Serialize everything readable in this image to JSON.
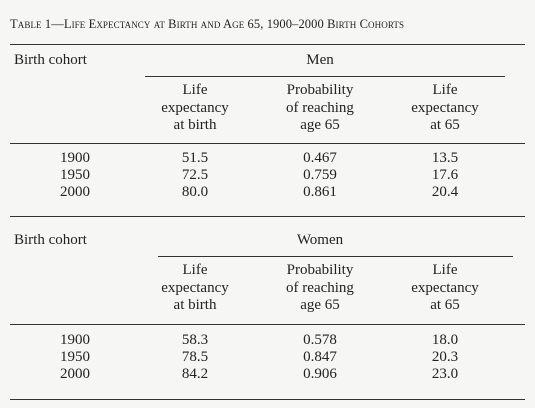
{
  "table": {
    "title_prefix": "Table 1",
    "title_dash": "—",
    "title_text": "Life Expectancy at Birth and Age 65, 1900–2000 Birth Cohorts",
    "birth_cohort_label": "Birth cohort",
    "columns": {
      "life_expectancy_birth": [
        "Life",
        "expectancy",
        "at birth"
      ],
      "prob_reaching_65": [
        "Probability",
        "of reaching",
        "age 65"
      ],
      "life_expectancy_65": [
        "Life",
        "expectancy",
        "at 65"
      ]
    },
    "sections": [
      {
        "group": "Men",
        "rows": [
          {
            "cohort": "1900",
            "le_birth": "51.5",
            "prob65": "0.467",
            "le65": "13.5"
          },
          {
            "cohort": "1950",
            "le_birth": "72.5",
            "prob65": "0.759",
            "le65": "17.6"
          },
          {
            "cohort": "2000",
            "le_birth": "80.0",
            "prob65": "0.861",
            "le65": "20.4"
          }
        ]
      },
      {
        "group": "Women",
        "rows": [
          {
            "cohort": "1900",
            "le_birth": "58.3",
            "prob65": "0.578",
            "le65": "18.0"
          },
          {
            "cohort": "1950",
            "le_birth": "78.5",
            "prob65": "0.847",
            "le65": "20.3"
          },
          {
            "cohort": "2000",
            "le_birth": "84.2",
            "prob65": "0.906",
            "le65": "23.0"
          }
        ]
      }
    ]
  }
}
